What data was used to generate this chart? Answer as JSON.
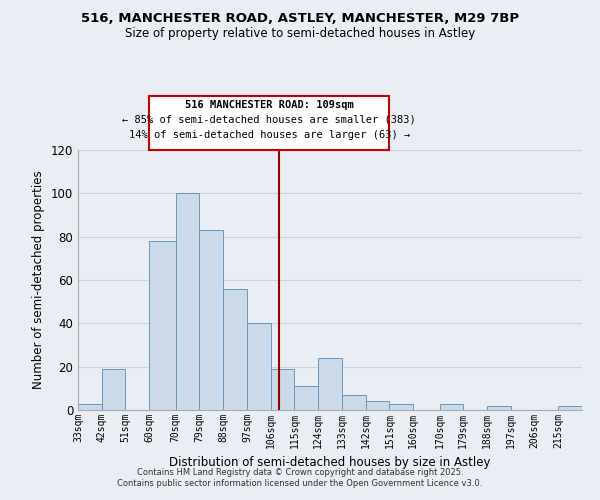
{
  "title1": "516, MANCHESTER ROAD, ASTLEY, MANCHESTER, M29 7BP",
  "title2": "Size of property relative to semi-detached houses in Astley",
  "xlabel": "Distribution of semi-detached houses by size in Astley",
  "ylabel": "Number of semi-detached properties",
  "bin_labels": [
    "33sqm",
    "42sqm",
    "51sqm",
    "60sqm",
    "70sqm",
    "79sqm",
    "88sqm",
    "97sqm",
    "106sqm",
    "115sqm",
    "124sqm",
    "133sqm",
    "142sqm",
    "151sqm",
    "160sqm",
    "170sqm",
    "179sqm",
    "188sqm",
    "197sqm",
    "206sqm",
    "215sqm"
  ],
  "bar_values": [
    3,
    19,
    0,
    78,
    100,
    83,
    56,
    40,
    19,
    11,
    24,
    7,
    4,
    3,
    0,
    3,
    0,
    2,
    0,
    0,
    2
  ],
  "bar_color": "#ccd9e8",
  "bar_edge_color": "#6699bb",
  "grid_color": "#c8d4e0",
  "bg_color": "#e8eef4",
  "vline_x": 109,
  "vline_color": "#990000",
  "annotation_title": "516 MANCHESTER ROAD: 109sqm",
  "annotation_line1": "← 85% of semi-detached houses are smaller (383)",
  "annotation_line2": "14% of semi-detached houses are larger (63) →",
  "ylim": [
    0,
    120
  ],
  "yticks": [
    0,
    20,
    40,
    60,
    80,
    100,
    120
  ],
  "footnote1": "Contains HM Land Registry data © Crown copyright and database right 2025.",
  "footnote2": "Contains public sector information licensed under the Open Government Licence v3.0.",
  "bin_edges": [
    33,
    42,
    51,
    60,
    70,
    79,
    88,
    97,
    106,
    115,
    124,
    133,
    142,
    151,
    160,
    170,
    179,
    188,
    197,
    206,
    215,
    224
  ]
}
